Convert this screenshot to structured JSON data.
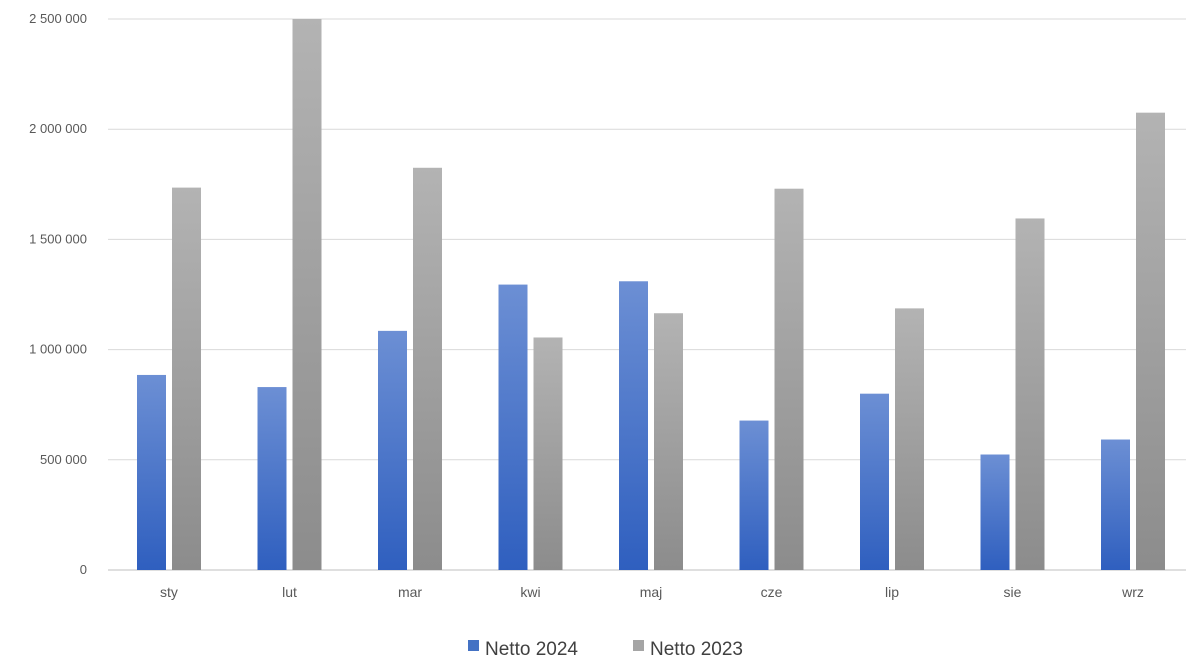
{
  "chart_data": {
    "type": "bar",
    "categories": [
      "sty",
      "lut",
      "mar",
      "kwi",
      "maj",
      "cze",
      "lip",
      "sie",
      "wrz"
    ],
    "series": [
      {
        "name": "Netto 2024",
        "values": [
          885000,
          830000,
          1085000,
          1295000,
          1310000,
          678000,
          800000,
          524000,
          592000
        ],
        "color": "#4472c4"
      },
      {
        "name": "Netto 2023",
        "values": [
          1735000,
          2500000,
          1825000,
          1055000,
          1165000,
          1730000,
          1187000,
          1595000,
          2075000
        ],
        "color": "#a5a5a5"
      }
    ],
    "yticks": [
      0,
      500000,
      1000000,
      1500000,
      2000000,
      2500000
    ],
    "ytick_labels": [
      "0",
      "500 000",
      "1 000 000",
      "1 500 000",
      "2 000 000",
      "2 500 000"
    ],
    "ylim": [
      0,
      2500000
    ],
    "grid": true,
    "legend_position": "bottom"
  }
}
